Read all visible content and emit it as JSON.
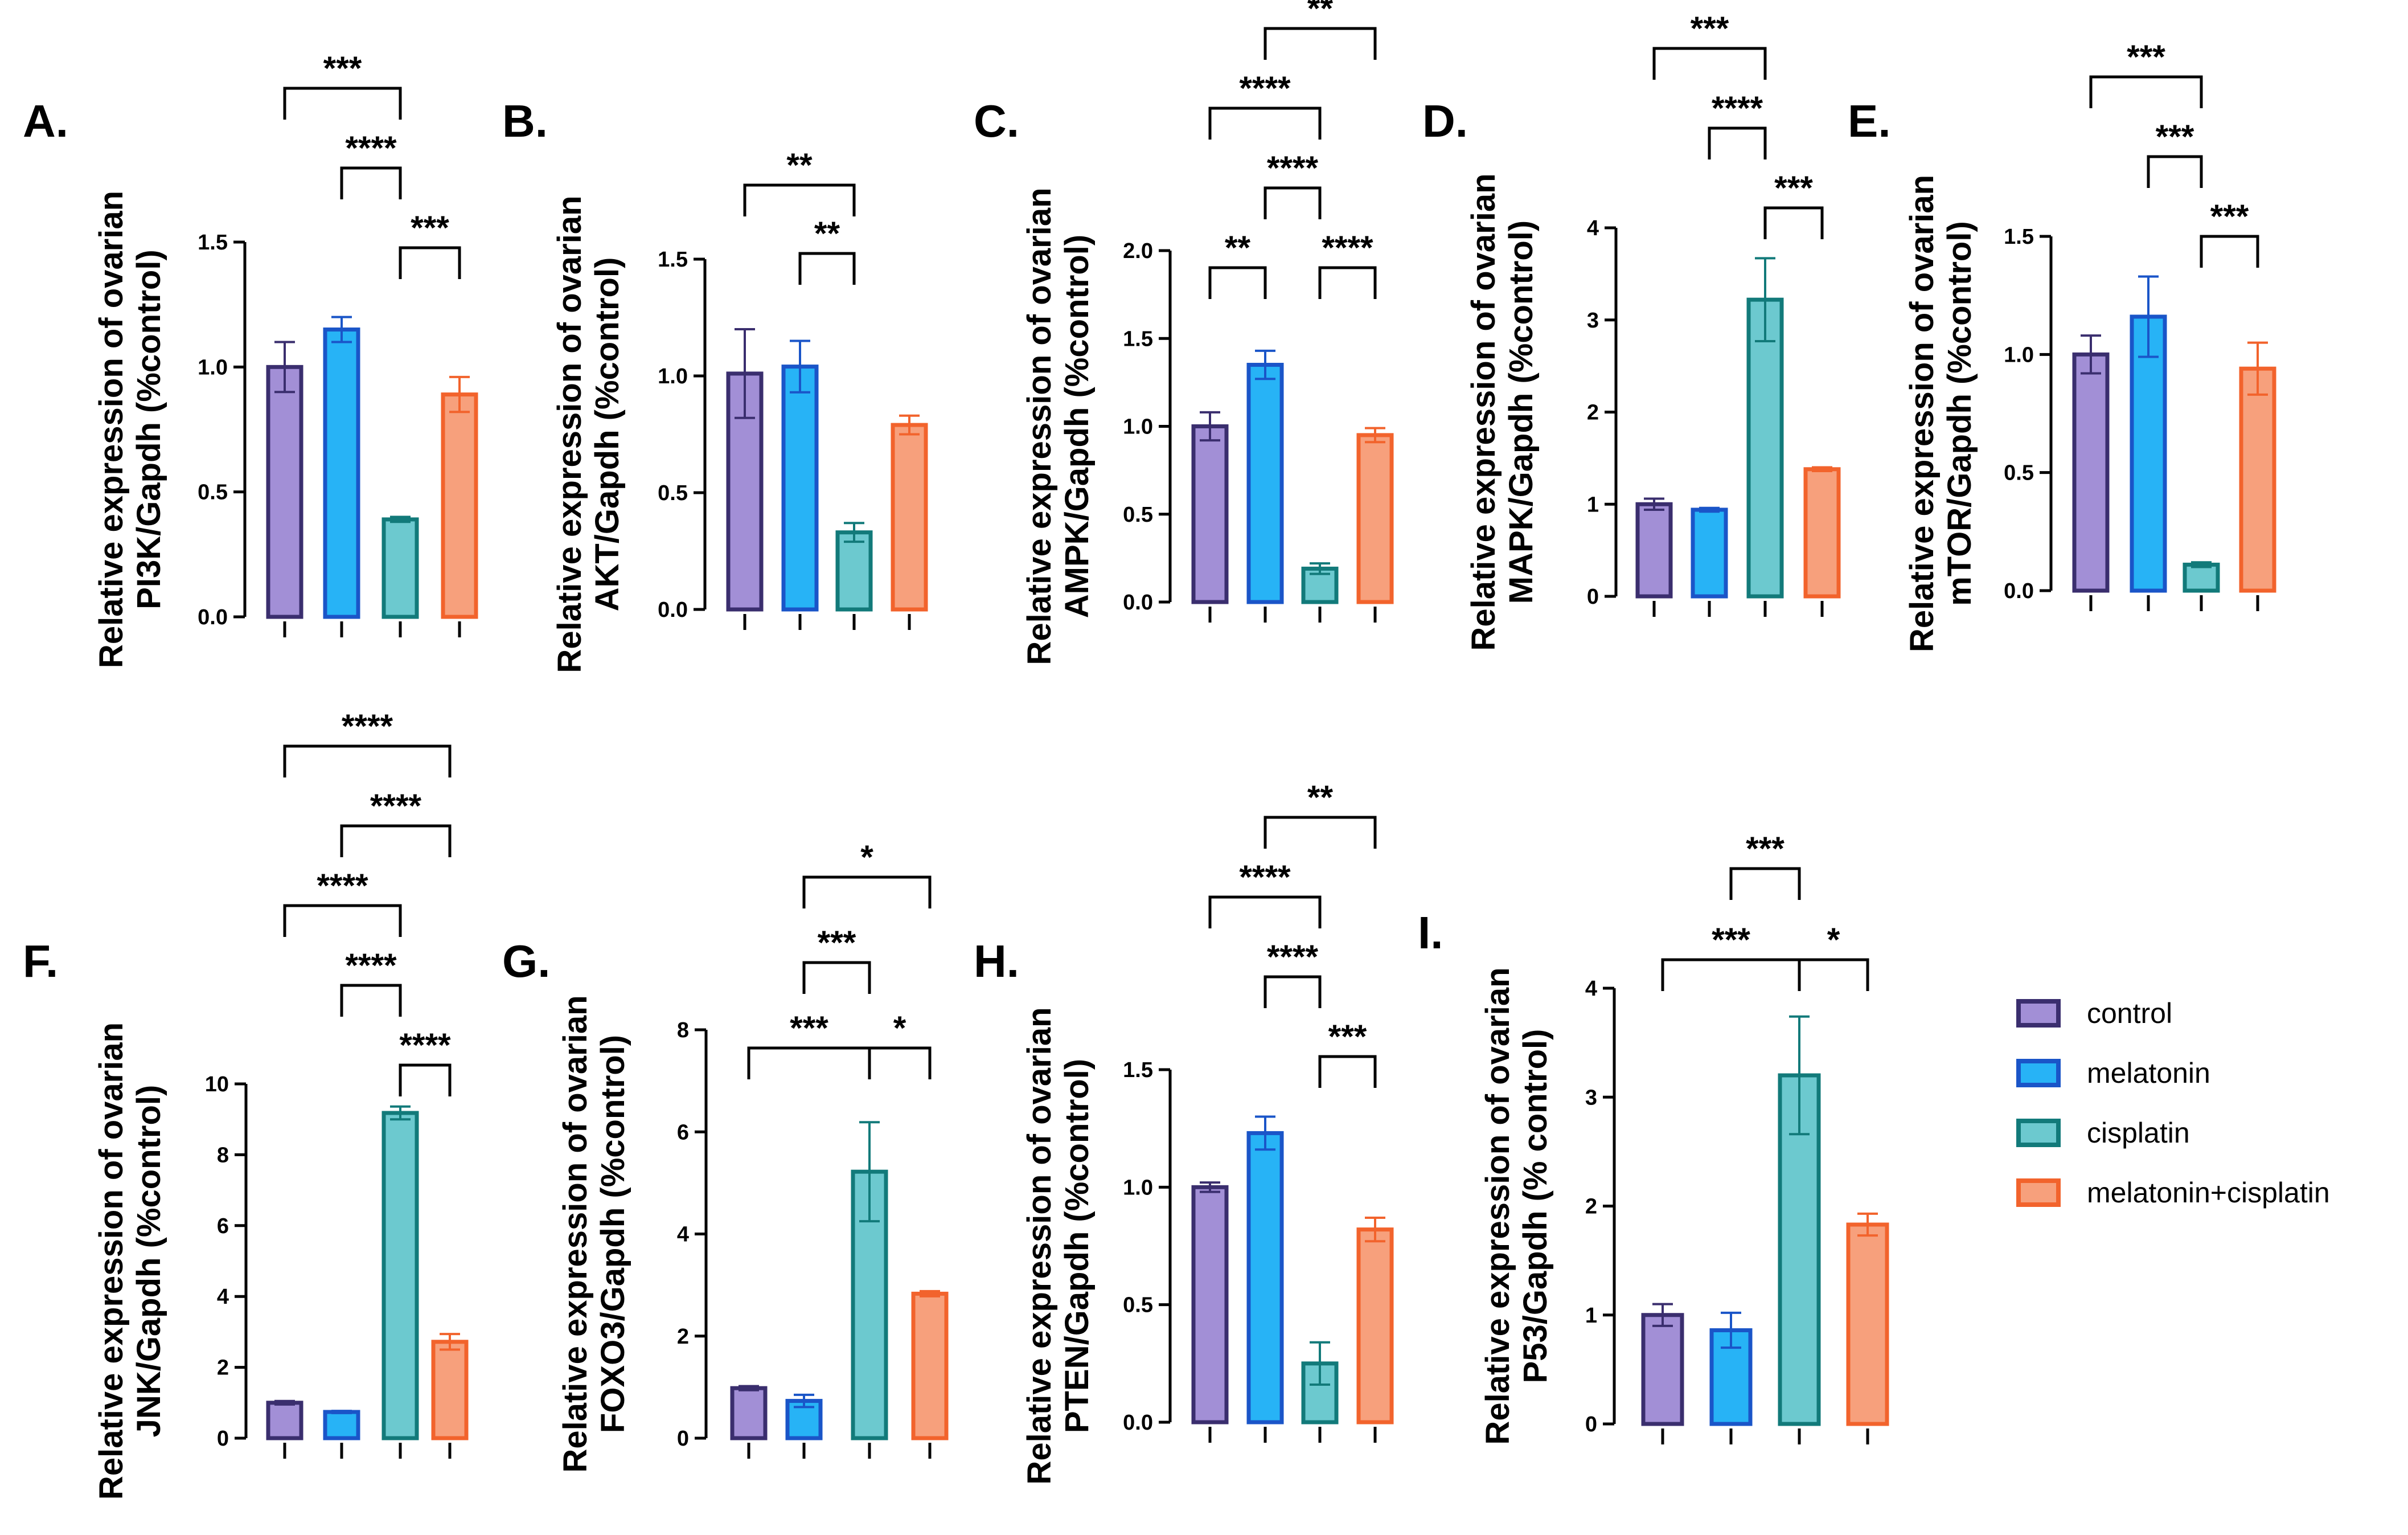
{
  "colors": {
    "groups": [
      {
        "fill": "#a28fd6",
        "stroke": "#3a2e6e"
      },
      {
        "fill": "#27b3f6",
        "stroke": "#1a55c8"
      },
      {
        "fill": "#6cc9cf",
        "stroke": "#127a7a"
      },
      {
        "fill": "#f7a07c",
        "stroke": "#f2632c"
      }
    ]
  },
  "legend": {
    "items": [
      "control",
      "melatonin",
      "cisplatin",
      "melatonin+cisplatin"
    ]
  },
  "chart_data": [
    {
      "type": "bar",
      "panel": "A.",
      "ylabel_lines": [
        "Relative expression of ovarian",
        "PI3K/Gapdh (%control)"
      ],
      "categories": [
        "control",
        "melatonin",
        "cisplatin",
        "melatonin+cisplatin"
      ],
      "values": [
        1.0,
        1.15,
        0.39,
        0.89
      ],
      "errors": [
        0.1,
        0.05,
        0.01,
        0.07
      ],
      "ylim": [
        0,
        1.5
      ],
      "ticks": [
        0.0,
        0.5,
        1.0,
        1.5
      ],
      "tick_labels": [
        "0.0",
        "0.5",
        "1.0",
        "1.5"
      ],
      "sig": [
        {
          "from": 0,
          "to": 2,
          "label": "***",
          "level": 3
        },
        {
          "from": 1,
          "to": 2,
          "label": "****",
          "level": 2
        },
        {
          "from": 2,
          "to": 3,
          "label": "***",
          "level": 1
        }
      ]
    },
    {
      "type": "bar",
      "panel": "B.",
      "ylabel_lines": [
        "Relative expression of ovarian",
        "AKT/Gapdh (%control)"
      ],
      "categories": [
        "control",
        "melatonin",
        "cisplatin",
        "melatonin+cisplatin"
      ],
      "values": [
        1.01,
        1.04,
        0.33,
        0.79
      ],
      "errors": [
        0.19,
        0.11,
        0.04,
        0.04
      ],
      "ylim": [
        0,
        1.5
      ],
      "ticks": [
        0.0,
        0.5,
        1.0,
        1.5
      ],
      "tick_labels": [
        "0.0",
        "0.5",
        "1.0",
        "1.5"
      ],
      "sig": [
        {
          "from": 0,
          "to": 2,
          "label": "**",
          "level": 2
        },
        {
          "from": 1,
          "to": 2,
          "label": "**",
          "level": 1
        }
      ]
    },
    {
      "type": "bar",
      "panel": "C.",
      "ylabel_lines": [
        "Relative expression of ovarian",
        "AMPK/Gapdh (%control)"
      ],
      "categories": [
        "control",
        "melatonin",
        "cisplatin",
        "melatonin+cisplatin"
      ],
      "values": [
        1.0,
        1.35,
        0.19,
        0.95
      ],
      "errors": [
        0.08,
        0.08,
        0.03,
        0.04
      ],
      "ylim": [
        0,
        2.0
      ],
      "ticks": [
        0.0,
        0.5,
        1.0,
        1.5,
        2.0
      ],
      "tick_labels": [
        "0.0",
        "0.5",
        "1.0",
        "1.5",
        "2.0"
      ],
      "sig": [
        {
          "from": 1,
          "to": 3,
          "label": "**",
          "level": 4
        },
        {
          "from": 0,
          "to": 2,
          "label": "****",
          "level": 3
        },
        {
          "from": 1,
          "to": 2,
          "label": "****",
          "level": 2
        },
        {
          "from": 0,
          "to": 1,
          "label": "**",
          "level": 1
        },
        {
          "from": 2,
          "to": 3,
          "label": "****",
          "level": 1
        }
      ]
    },
    {
      "type": "bar",
      "panel": "D.",
      "ylabel_lines": [
        "Relative expression of ovarian",
        "MAPK/Gapdh (%control)"
      ],
      "categories": [
        "control",
        "melatonin",
        "cisplatin",
        "melatonin+cisplatin"
      ],
      "values": [
        1.0,
        0.94,
        3.22,
        1.38
      ],
      "errors": [
        0.06,
        0.02,
        0.45,
        0.02
      ],
      "ylim": [
        0,
        4
      ],
      "ticks": [
        0,
        1,
        2,
        3,
        4
      ],
      "tick_labels": [
        "0",
        "1",
        "2",
        "3",
        "4"
      ],
      "sig": [
        {
          "from": 0,
          "to": 2,
          "label": "***",
          "level": 3
        },
        {
          "from": 1,
          "to": 2,
          "label": "****",
          "level": 2
        },
        {
          "from": 2,
          "to": 3,
          "label": "***",
          "level": 1
        }
      ]
    },
    {
      "type": "bar",
      "panel": "E.",
      "ylabel_lines": [
        "Relative expression of ovarian",
        "mTOR/Gapdh (%control)"
      ],
      "categories": [
        "control",
        "melatonin",
        "cisplatin",
        "melatonin+cisplatin"
      ],
      "values": [
        1.0,
        1.16,
        0.11,
        0.94
      ],
      "errors": [
        0.08,
        0.17,
        0.01,
        0.11
      ],
      "ylim": [
        0,
        1.5
      ],
      "ticks": [
        0.0,
        0.5,
        1.0,
        1.5
      ],
      "tick_labels": [
        "0.0",
        "0.5",
        "1.0",
        "1.5"
      ],
      "sig": [
        {
          "from": 0,
          "to": 2,
          "label": "***",
          "level": 3
        },
        {
          "from": 1,
          "to": 2,
          "label": "***",
          "level": 2
        },
        {
          "from": 2,
          "to": 3,
          "label": "***",
          "level": 1
        }
      ]
    },
    {
      "type": "bar",
      "panel": "F.",
      "ylabel_lines": [
        "Relative expression of ovarian",
        "JNK/Gapdh (%control)"
      ],
      "categories": [
        "control",
        "melatonin",
        "cisplatin",
        "melatonin+cisplatin"
      ],
      "values": [
        1.0,
        0.74,
        9.18,
        2.72
      ],
      "errors": [
        0.05,
        0.03,
        0.18,
        0.22
      ],
      "ylim": [
        0,
        10
      ],
      "ticks": [
        0,
        2,
        4,
        6,
        8,
        10
      ],
      "tick_labels": [
        "0",
        "2",
        "4",
        "6",
        "8",
        "10"
      ],
      "sig": [
        {
          "from": 0,
          "to": 3,
          "label": "****",
          "level": 5
        },
        {
          "from": 1,
          "to": 3,
          "label": "****",
          "level": 4
        },
        {
          "from": 0,
          "to": 2,
          "label": "****",
          "level": 3
        },
        {
          "from": 1,
          "to": 2,
          "label": "****",
          "level": 2
        },
        {
          "from": 2,
          "to": 3,
          "label": "****",
          "level": 1
        }
      ]
    },
    {
      "type": "bar",
      "panel": "G.",
      "ylabel_lines": [
        "Relative expression of ovarian",
        "FOXO3/Gapdh (%control)"
      ],
      "categories": [
        "control",
        "melatonin",
        "cisplatin",
        "melatonin+cisplatin"
      ],
      "values": [
        0.98,
        0.73,
        5.22,
        2.83
      ],
      "errors": [
        0.04,
        0.12,
        0.97,
        0.05
      ],
      "ylim": [
        0,
        8
      ],
      "ticks": [
        0,
        2,
        4,
        6,
        8
      ],
      "tick_labels": [
        "0",
        "2",
        "4",
        "6",
        "8"
      ],
      "sig": [
        {
          "from": 1,
          "to": 3,
          "label": "*",
          "level": 3
        },
        {
          "from": 1,
          "to": 2,
          "label": "***",
          "level": 2
        },
        {
          "from": 0,
          "to": 2,
          "label": "***",
          "level": 1
        },
        {
          "from": 2,
          "to": 3,
          "label": "*",
          "level": 1
        }
      ]
    },
    {
      "type": "bar",
      "panel": "H.",
      "ylabel_lines": [
        "Relative expression of ovarian",
        "PTEN/Gapdh (%control)"
      ],
      "categories": [
        "control",
        "melatonin",
        "cisplatin",
        "melatonin+cisplatin"
      ],
      "values": [
        1.0,
        1.23,
        0.25,
        0.82
      ],
      "errors": [
        0.02,
        0.07,
        0.09,
        0.05
      ],
      "ylim": [
        0,
        1.5
      ],
      "ticks": [
        0.0,
        0.5,
        1.0,
        1.5
      ],
      "tick_labels": [
        "0.0",
        "0.5",
        "1.0",
        "1.5"
      ],
      "sig": [
        {
          "from": 1,
          "to": 3,
          "label": "**",
          "level": 4
        },
        {
          "from": 0,
          "to": 2,
          "label": "****",
          "level": 3
        },
        {
          "from": 1,
          "to": 2,
          "label": "****",
          "level": 2
        },
        {
          "from": 2,
          "to": 3,
          "label": "***",
          "level": 1
        }
      ]
    },
    {
      "type": "bar",
      "panel": "I.",
      "ylabel_lines": [
        "Relative expression of ovarian",
        "P53/Gapdh (% control)"
      ],
      "categories": [
        "control",
        "melatonin",
        "cisplatin",
        "melatonin+cisplatin"
      ],
      "values": [
        1.0,
        0.86,
        3.2,
        1.83
      ],
      "errors": [
        0.1,
        0.16,
        0.54,
        0.1
      ],
      "ylim": [
        0,
        4
      ],
      "ticks": [
        0,
        1,
        2,
        3,
        4
      ],
      "tick_labels": [
        "0",
        "1",
        "2",
        "3",
        "4"
      ],
      "sig": [
        {
          "from": 1,
          "to": 2,
          "label": "***",
          "level": 2
        },
        {
          "from": 0,
          "to": 2,
          "label": "***",
          "level": 1
        },
        {
          "from": 2,
          "to": 3,
          "label": "*",
          "level": 1
        }
      ]
    }
  ]
}
